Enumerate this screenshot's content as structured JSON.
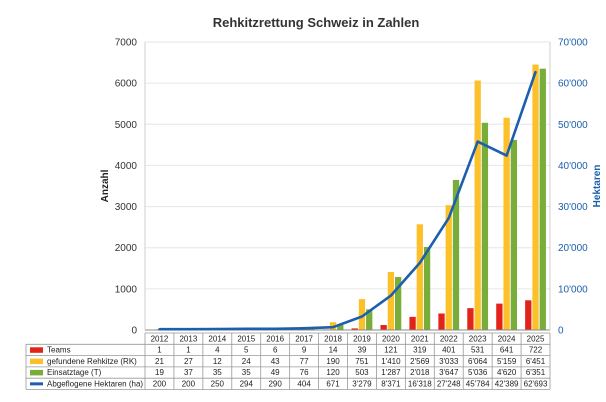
{
  "chart_data": {
    "type": "bar",
    "title": "Rehkitzrettung Schweiz in Zahlen",
    "ylabel": "Anzahl",
    "ylabel_right": "Hektaren",
    "ylim": [
      0,
      7000
    ],
    "ylim_right": [
      0,
      70000
    ],
    "y_ticks": [
      "0",
      "1000",
      "2000",
      "3000",
      "4000",
      "5000",
      "6000",
      "7000"
    ],
    "y_ticks_right": [
      "0",
      "10'000",
      "20'000",
      "30'000",
      "40'000",
      "50'000",
      "60'000",
      "70'000"
    ],
    "categories": [
      "2012",
      "2013",
      "2014",
      "2015",
      "2016",
      "2017",
      "2018",
      "2019",
      "2020",
      "2021",
      "2022",
      "2023",
      "2024",
      "2025"
    ],
    "series": [
      {
        "name": "Teams",
        "type": "bar",
        "color": "#e2231a",
        "axis": "left",
        "values": [
          1,
          1,
          4,
          5,
          6,
          9,
          14,
          39,
          121,
          319,
          401,
          531,
          641,
          722
        ],
        "labels": [
          "1",
          "1",
          "4",
          "5",
          "6",
          "9",
          "14",
          "39",
          "121",
          "319",
          "401",
          "531",
          "641",
          "722"
        ]
      },
      {
        "name": "gefundene Rehkitze (RK)",
        "type": "bar",
        "color": "#fcc02a",
        "axis": "left",
        "values": [
          21,
          27,
          12,
          24,
          43,
          77,
          190,
          751,
          1410,
          2569,
          3033,
          6064,
          5159,
          6451
        ],
        "labels": [
          "21",
          "27",
          "12",
          "24",
          "43",
          "77",
          "190",
          "751",
          "1'410",
          "2'569",
          "3'033",
          "6'064",
          "5'159",
          "6'451"
        ]
      },
      {
        "name": "Einsatztage (T)",
        "type": "bar",
        "color": "#78ad3a",
        "axis": "left",
        "values": [
          19,
          37,
          35,
          35,
          49,
          76,
          120,
          503,
          1287,
          2018,
          3647,
          5036,
          4620,
          6351
        ],
        "labels": [
          "19",
          "37",
          "35",
          "35",
          "49",
          "76",
          "120",
          "503",
          "1'287",
          "2'018",
          "3'647",
          "5'036",
          "4'620",
          "6'351"
        ]
      },
      {
        "name": "Abgeflogene Hektaren (ha)",
        "type": "line",
        "color": "#1b5fad",
        "axis": "right",
        "values": [
          200,
          200,
          250,
          294,
          290,
          404,
          671,
          3279,
          8371,
          16318,
          27248,
          45784,
          42389,
          62693
        ],
        "labels": [
          "200",
          "200",
          "250",
          "294",
          "290",
          "404",
          "671",
          "3'279",
          "8'371",
          "16'318",
          "27'248",
          "45'784",
          "42'389",
          "62'693"
        ]
      }
    ]
  }
}
